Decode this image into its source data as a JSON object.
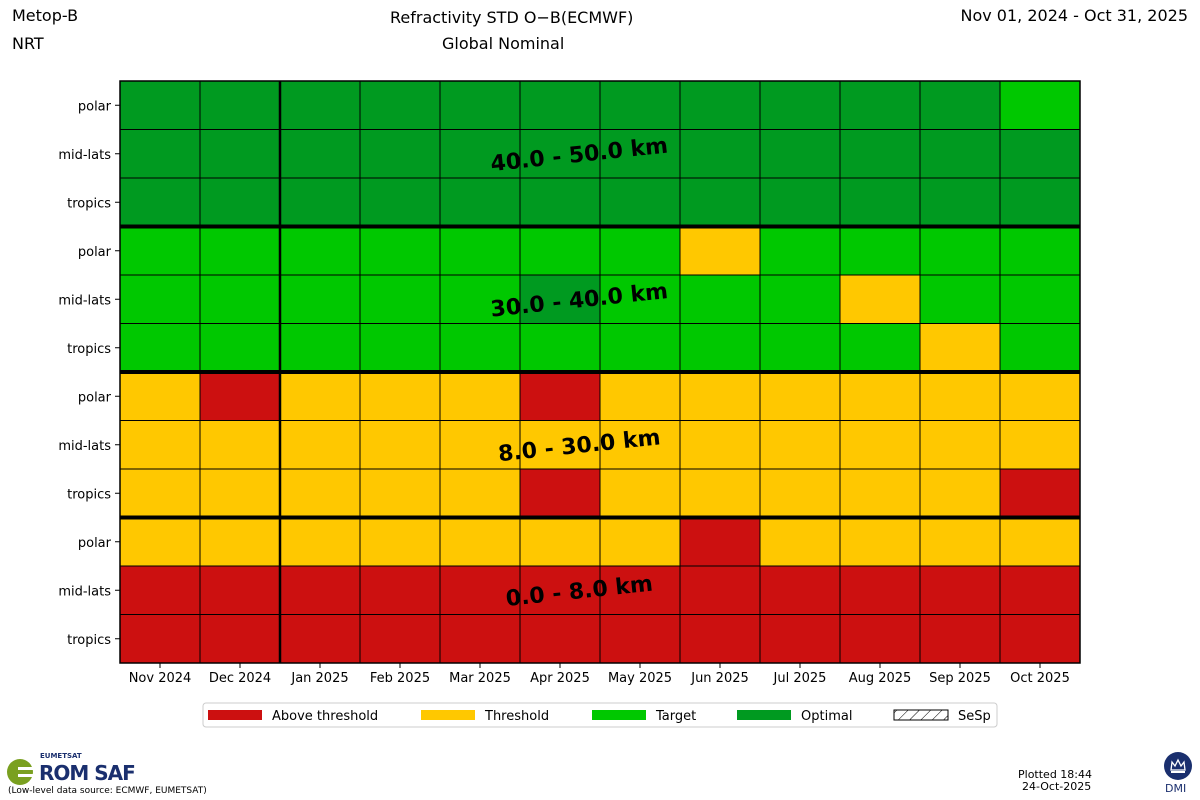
{
  "header": {
    "satellite": "Metop-B",
    "mode": "NRT",
    "title_line1": "Refractivity   STD O−B(ECMWF)",
    "title_line2": "Global   Nominal",
    "date_range": "Nov 01, 2024 - Oct 31, 2025"
  },
  "chart_data": {
    "type": "heatmap",
    "columns": [
      "Nov 2024",
      "Dec 2024",
      "Jan 2025",
      "Feb 2025",
      "Mar 2025",
      "Apr 2025",
      "May 2025",
      "Jun 2025",
      "Jul 2025",
      "Aug 2025",
      "Sep 2025",
      "Oct 2025"
    ],
    "rows": [
      "polar",
      "mid-lats",
      "tropics",
      "polar",
      "mid-lats",
      "tropics",
      "polar",
      "mid-lats",
      "tropics",
      "polar",
      "mid-lats",
      "tropics"
    ],
    "bands": [
      "40.0 - 50.0 km",
      "30.0 - 40.0 km",
      "8.0 - 30.0 km",
      "0.0 - 8.0 km"
    ],
    "categories": [
      "Above threshold",
      "Threshold",
      "Target",
      "Optimal",
      "SeSp"
    ],
    "colors": {
      "Above threshold": "#cc1010",
      "Threshold": "#ffc800",
      "Target": "#00c800",
      "Optimal": "#009a20"
    },
    "cells": [
      [
        "O",
        "O",
        "O",
        "O",
        "O",
        "O",
        "O",
        "O",
        "O",
        "O",
        "O",
        "T"
      ],
      [
        "O",
        "O",
        "O",
        "O",
        "O",
        "O",
        "O",
        "O",
        "O",
        "O",
        "O",
        "O"
      ],
      [
        "O",
        "O",
        "O",
        "O",
        "O",
        "O",
        "O",
        "O",
        "O",
        "O",
        "O",
        "O"
      ],
      [
        "T",
        "T",
        "T",
        "T",
        "T",
        "T",
        "T",
        "H",
        "T",
        "T",
        "T",
        "T"
      ],
      [
        "T",
        "T",
        "T",
        "T",
        "T",
        "O",
        "T",
        "T",
        "T",
        "H",
        "T",
        "T"
      ],
      [
        "T",
        "T",
        "T",
        "T",
        "T",
        "T",
        "T",
        "T",
        "T",
        "T",
        "H",
        "T"
      ],
      [
        "H",
        "A",
        "H",
        "H",
        "H",
        "A",
        "H",
        "H",
        "H",
        "H",
        "H",
        "H"
      ],
      [
        "H",
        "H",
        "H",
        "H",
        "H",
        "H",
        "H",
        "H",
        "H",
        "H",
        "H",
        "H"
      ],
      [
        "H",
        "H",
        "H",
        "H",
        "H",
        "A",
        "H",
        "H",
        "H",
        "H",
        "H",
        "A"
      ],
      [
        "H",
        "H",
        "H",
        "H",
        "H",
        "H",
        "H",
        "A",
        "H",
        "H",
        "H",
        "H"
      ],
      [
        "A",
        "A",
        "A",
        "A",
        "A",
        "A",
        "A",
        "A",
        "A",
        "A",
        "A",
        "A"
      ],
      [
        "A",
        "A",
        "A",
        "A",
        "A",
        "A",
        "A",
        "A",
        "A",
        "A",
        "A",
        "A"
      ]
    ]
  },
  "footer": {
    "eumetsat": "EUMETSAT",
    "romsaf": "ROM SAF",
    "source": "(Low-level data source: ECMWF, EUMETSAT)",
    "plotted_line1": "Plotted 18:44",
    "plotted_line2": "24-Oct-2025",
    "dmi": "DMI"
  }
}
